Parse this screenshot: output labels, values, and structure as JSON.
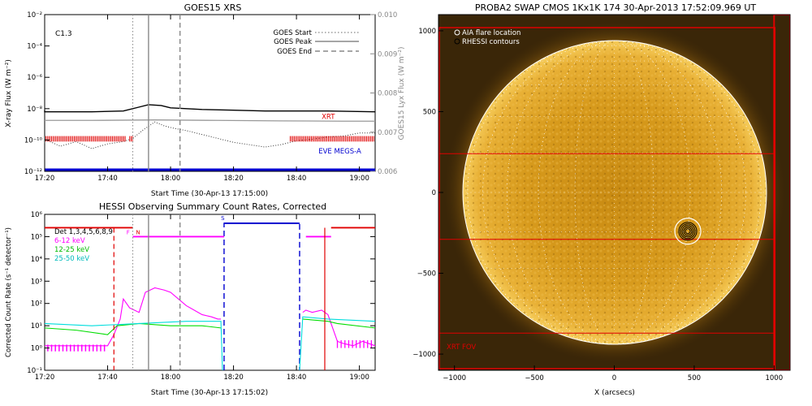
{
  "chart_data": [
    {
      "type": "line",
      "title": "GOES15 XRS",
      "xlabel": "Start Time (30-Apr-13 17:15:00)",
      "ylabel": "X-ray Flux (W m⁻²)",
      "y2label": "GOES15 Lyx Flux (W m⁻²)",
      "x_ticks": [
        "17:20",
        "17:40",
        "18:00",
        "18:20",
        "18:40",
        "19:00"
      ],
      "y_ticks": [
        "10⁻¹²",
        "10⁻¹⁰",
        "10⁻⁸",
        "10⁻⁶",
        "10⁻⁴",
        "10⁻²"
      ],
      "y2_ticks": [
        "0.006",
        "0.007",
        "0.008",
        "0.009",
        "0.010"
      ],
      "xlim_min": [
        5,
        110
      ],
      "ylim_exp": [
        -12,
        -2
      ],
      "y2lim": [
        0.006,
        0.01
      ],
      "scale": "log",
      "class_label": "C1.3",
      "legend": [
        "GOES Start",
        "GOES Peak",
        "GOES End"
      ],
      "event_lines_min": {
        "start": 33,
        "peak": 38,
        "end": 48
      },
      "annotations": [
        {
          "text": "XRT",
          "min": 93,
          "exp": -8.5,
          "color": "#e00000"
        },
        {
          "text": "EVE MEGS-A",
          "min": 92,
          "exp": -10.7,
          "color": "#0000d0"
        }
      ],
      "series": [
        {
          "style": "black",
          "x": [
            0,
            5,
            20,
            30,
            35,
            38,
            42,
            45,
            55,
            65,
            75,
            85,
            95,
            110,
            115
          ],
          "exp": [
            -8.1,
            -8.2,
            -8.2,
            -8.15,
            -7.9,
            -7.75,
            -7.8,
            -7.95,
            -8.05,
            -8.1,
            -8.15,
            -8.15,
            -8.15,
            -8.2,
            -8.2
          ]
        },
        {
          "style": "gray",
          "x": [
            0,
            20,
            40,
            60,
            80,
            100,
            115
          ],
          "exp": [
            -8.75,
            -8.75,
            -8.72,
            -8.75,
            -8.78,
            -8.8,
            -8.8
          ]
        },
        {
          "style": "dotted",
          "x": [
            0,
            5,
            10,
            15,
            20,
            25,
            30,
            33,
            36,
            40,
            43,
            46,
            50,
            55,
            60,
            65,
            70,
            75,
            80,
            85,
            90,
            95,
            100,
            105,
            110,
            115
          ],
          "exp": [
            -10.2,
            -9.95,
            -10.4,
            -10.1,
            -10.55,
            -10.25,
            -10.1,
            -9.9,
            -9.4,
            -8.85,
            -9.1,
            -9.25,
            -9.4,
            -9.65,
            -9.9,
            -10.15,
            -10.3,
            -10.45,
            -10.3,
            -10.05,
            -9.95,
            -9.8,
            -9.75,
            -9.55,
            -9.55,
            -9.5
          ]
        }
      ],
      "red_ticks": [
        [
          0,
          31
        ],
        [
          32,
          33
        ],
        [
          83,
          115
        ]
      ],
      "blue_line_exp": -12
    },
    {
      "type": "line",
      "title": "HESSI Observing Summary Count Rates, Corrected",
      "xlabel": "Start Time (30-Apr-13 17:15:02)",
      "ylabel": "Corrected Count Rate (s⁻¹ detector⁻¹)",
      "x_ticks": [
        "17:20",
        "17:40",
        "18:00",
        "18:20",
        "18:40",
        "19:00"
      ],
      "y_ticks": [
        "10⁻¹",
        "10⁰",
        "10¹",
        "10²",
        "10³",
        "10⁴",
        "10⁵",
        "10⁶"
      ],
      "xlim_min": [
        5,
        110
      ],
      "ylim_exp": [
        -1,
        6
      ],
      "scale": "log",
      "legend": [
        {
          "name": "Det 1,3,4,5,6,8,9",
          "color": "#000000"
        },
        {
          "name": "6-12 keV",
          "color": "#ff00ff"
        },
        {
          "name": "12-25 keV",
          "color": "#00dd00"
        },
        {
          "name": "25-50 keV",
          "color": "#00dddd"
        }
      ],
      "flags": [
        {
          "text": "N",
          "min": 34,
          "color": "#e00000"
        },
        {
          "text": "F",
          "min": 31,
          "color": "#ff00ff"
        },
        {
          "text": "S",
          "min": 61,
          "color": "#0000d0"
        }
      ],
      "event_lines_min": {
        "start": 33,
        "peak": 38,
        "end": 48
      },
      "red_dashed_min": 27,
      "red_solid_min": 94,
      "blue_dashed_min": [
        62,
        86
      ],
      "series": [
        {
          "name": "6-12 keV",
          "color": "#ff00ff",
          "x": [
            5,
            10,
            15,
            20,
            25,
            27,
            29,
            30,
            32,
            35,
            37,
            40,
            43,
            45,
            50,
            55,
            58,
            60,
            61
          ],
          "exp": [
            0.1,
            0.1,
            0.1,
            0.1,
            0.1,
            0.6,
            1.3,
            2.2,
            1.8,
            1.6,
            2.5,
            2.7,
            2.6,
            2.5,
            1.9,
            1.5,
            1.4,
            1.3,
            1.3
          ]
        },
        {
          "name": "6-12 keV",
          "color": "#ff00ff",
          "x": [
            87,
            88,
            90,
            93,
            95,
            98,
            100,
            103,
            106,
            110
          ],
          "exp": [
            1.6,
            1.7,
            1.6,
            1.7,
            1.5,
            0.3,
            0.2,
            0.1,
            0.3,
            0.1
          ]
        },
        {
          "name": "12-25 keV",
          "color": "#00dd00",
          "x": [
            5,
            15,
            25,
            28,
            35,
            45,
            55,
            61
          ],
          "exp": [
            0.9,
            0.8,
            0.6,
            1.0,
            1.1,
            1.0,
            1.0,
            0.9
          ]
        },
        {
          "name": "12-25 keV",
          "color": "#00dd00",
          "x": [
            87,
            95,
            98,
            110
          ],
          "exp": [
            1.3,
            1.2,
            1.1,
            0.9
          ]
        },
        {
          "name": "25-50 keV",
          "color": "#00dddd",
          "x": [
            5,
            20,
            35,
            50,
            61,
            61.5
          ],
          "exp": [
            1.1,
            1.0,
            1.1,
            1.2,
            1.2,
            -1.0
          ]
        },
        {
          "name": "25-50 keV",
          "color": "#00dddd",
          "x": [
            86,
            87,
            95,
            110
          ],
          "exp": [
            -1.0,
            1.4,
            1.3,
            1.2
          ]
        }
      ],
      "top_bars": [
        {
          "color": "#e00000",
          "x": [
            5,
            33
          ],
          "exp": 5.4
        },
        {
          "color": "#ff00ff",
          "x": [
            33,
            62
          ],
          "exp": 5.0
        },
        {
          "color": "#0000d0",
          "x": [
            62,
            86
          ],
          "exp": 5.6
        },
        {
          "color": "#ff00ff",
          "x": [
            88,
            96
          ],
          "exp": 5.0
        },
        {
          "color": "#e00000",
          "x": [
            96,
            110
          ],
          "exp": 5.4
        }
      ]
    },
    {
      "type": "image",
      "title": "PROBA2 SWAP CMOS 1Kx1K 174 30-Apr-2013 17:52:09.969 UT",
      "xlabel": "X (arcsecs)",
      "x_ticks": [
        "−1000",
        "−500",
        "0",
        "500",
        "1000"
      ],
      "y_ticks": [
        "−1000",
        "−500",
        "0",
        "500",
        "1000"
      ],
      "xlim": [
        -1100,
        1100
      ],
      "ylim": [
        -1100,
        1100
      ],
      "solar_radius": 950,
      "legend": [
        "AIA flare location",
        "RHESSI contours"
      ],
      "flare_location": [
        460,
        -240
      ],
      "fov_label": "XRT FOV",
      "fov_lines": {
        "y1": 240,
        "y2": -290,
        "bottom": -870,
        "right": 1000
      }
    }
  ]
}
